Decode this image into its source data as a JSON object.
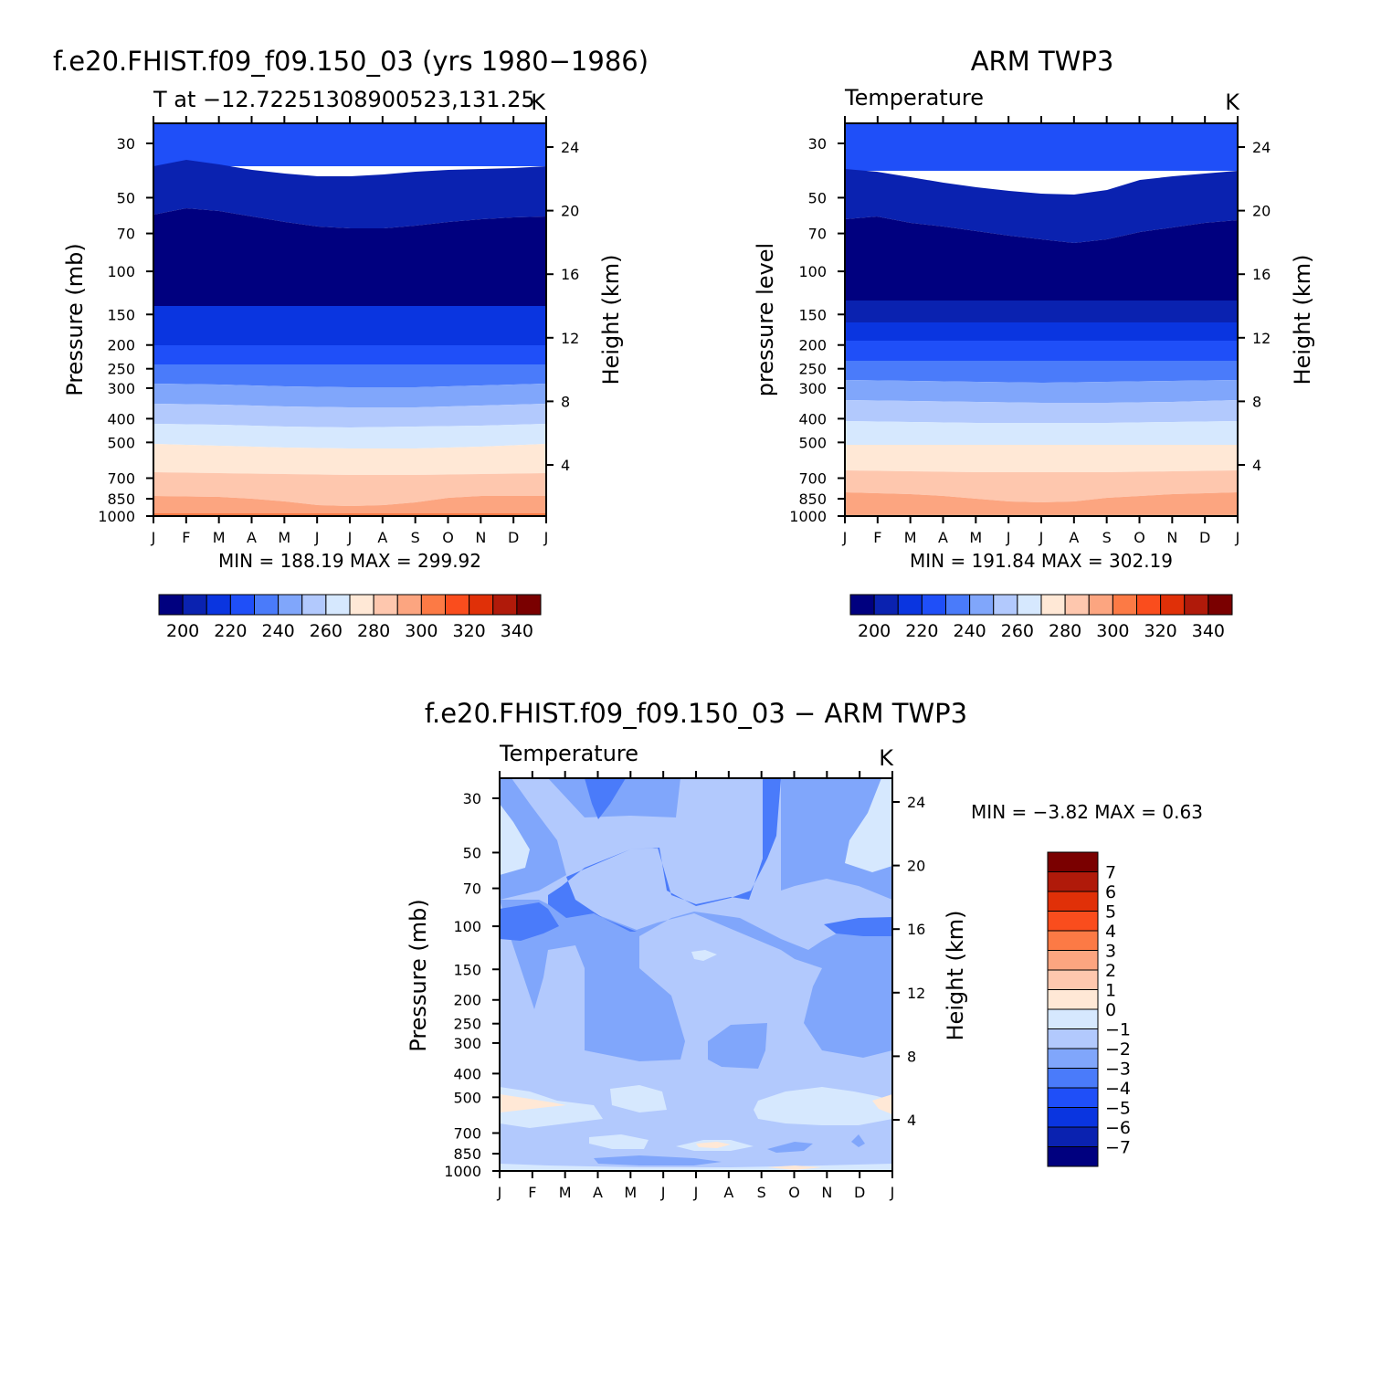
{
  "palette": [
    "#00007f",
    "#0a22b0",
    "#0a35e0",
    "#1f4ff8",
    "#4a7bfa",
    "#80a6fb",
    "#b2c9fd",
    "#d6e8fe",
    "#ffe8d6",
    "#fec7ae",
    "#fca580",
    "#fc7a45",
    "#fa4d1d",
    "#e03008",
    "#b01a0a",
    "#7a0000"
  ],
  "months": [
    "J",
    "F",
    "M",
    "A",
    "M",
    "J",
    "J",
    "A",
    "S",
    "O",
    "N",
    "D",
    "J"
  ],
  "pressure_ticks": [
    "30",
    "50",
    "70",
    "100",
    "150",
    "200",
    "250",
    "300",
    "400",
    "500",
    "700",
    "850",
    "1000"
  ],
  "height_ticks": [
    "24",
    "20",
    "16",
    "12",
    "8",
    "4"
  ],
  "panels": {
    "model": {
      "title": "f.e20.FHIST.f09_f09.150_03 (yrs 1980−1986)",
      "subtitle": "T at −12.72251308900523,131.25",
      "units": "K",
      "ylabel": "Pressure (mb)",
      "ylabel_right": "Height (km)",
      "stats": "MIN =  188.19  MAX =  299.92"
    },
    "obs": {
      "title": "ARM TWP3",
      "subtitle": "Temperature",
      "units": "K",
      "ylabel": "pressure level",
      "ylabel_right": "Height (km)",
      "stats": "MIN =  191.84  MAX =  302.19"
    },
    "diff": {
      "title": "f.e20.FHIST.f09_f09.150_03 − ARM TWP3",
      "subtitle": "Temperature",
      "units": "K",
      "ylabel": "Pressure (mb)",
      "ylabel_right": "Height (km)",
      "stats": "MIN =    −3.82  MAX =     0.63"
    }
  },
  "colorbar_top": {
    "labels": [
      "200",
      "220",
      "240",
      "260",
      "280",
      "300",
      "320",
      "340"
    ]
  },
  "colorbar_diff": {
    "labels": [
      "7",
      "6",
      "5",
      "4",
      "3",
      "2",
      "1",
      "0",
      "−1",
      "−2",
      "−3",
      "−4",
      "−5",
      "−6",
      "−7"
    ]
  },
  "chart_data": [
    {
      "type": "heatmap",
      "title": "f.e20.FHIST.f09_f09.150_03 (yrs 1980−1986)",
      "subtitle": "T at −12.72251308900523,131.25",
      "units": "K",
      "ylabel": "Pressure (mb)",
      "y2label": "Height (km)",
      "x": [
        "J",
        "F",
        "M",
        "A",
        "M",
        "J",
        "J",
        "A",
        "S",
        "O",
        "N",
        "D",
        "J"
      ],
      "y_pressure_mb": [
        30,
        50,
        70,
        100,
        150,
        200,
        250,
        300,
        400,
        500,
        700,
        850,
        1000
      ],
      "y_log": true,
      "contour_levels": [
        200,
        210,
        220,
        230,
        240,
        250,
        260,
        270,
        280,
        290,
        300,
        310,
        320,
        330,
        340
      ],
      "min": 188.19,
      "max": 299.92,
      "band_boundaries_mb": [
        {
          "level": 200,
          "p": [
            38,
            36,
            38,
            40,
            42,
            43,
            43,
            42,
            41,
            40,
            39,
            39,
            38
          ]
        },
        {
          "level": 190,
          "p": [
            65,
            62,
            63,
            64,
            66,
            68,
            70,
            70,
            69,
            67,
            65,
            64,
            64
          ]
        },
        {
          "level": 200.5,
          "p": [
            146,
            146,
            146,
            146,
            146,
            146,
            146,
            146,
            146,
            146,
            146,
            146,
            146
          ]
        },
        {
          "level": 210,
          "p": [
            178,
            178,
            179,
            180,
            180,
            180,
            180,
            180,
            180,
            180,
            180,
            179,
            178
          ]
        },
        {
          "level": 220,
          "p": [
            223,
            223,
            224,
            225,
            226,
            226,
            226,
            226,
            226,
            226,
            225,
            224,
            223
          ]
        },
        {
          "level": 230,
          "p": [
            280,
            280,
            282,
            285,
            287,
            288,
            288,
            288,
            287,
            285,
            283,
            281,
            280
          ]
        },
        {
          "level": 240,
          "p": [
            340,
            340,
            345,
            350,
            355,
            358,
            360,
            360,
            358,
            355,
            350,
            345,
            340
          ]
        },
        {
          "level": 250,
          "p": [
            425,
            425,
            430,
            435,
            440,
            445,
            448,
            448,
            445,
            440,
            435,
            430,
            425
          ]
        },
        {
          "level": 260,
          "p": [
            505,
            505,
            510,
            515,
            520,
            525,
            530,
            530,
            525,
            520,
            515,
            510,
            505
          ]
        },
        {
          "level": 270,
          "p": [
            655,
            655,
            660,
            665,
            668,
            670,
            672,
            670,
            668,
            665,
            660,
            655,
            655
          ]
        },
        {
          "level": 280,
          "p": [
            820,
            820,
            825,
            835,
            850,
            870,
            885,
            880,
            860,
            840,
            825,
            820,
            820
          ]
        },
        {
          "level": 290,
          "p": [
            990,
            990,
            990,
            990,
            990,
            990,
            990,
            990,
            990,
            990,
            990,
            990,
            990
          ]
        }
      ]
    },
    {
      "type": "heatmap",
      "title": "ARM TWP3",
      "subtitle": "Temperature",
      "units": "K",
      "ylabel": "pressure level",
      "y2label": "Height (km)",
      "x": [
        "J",
        "F",
        "M",
        "A",
        "M",
        "J",
        "J",
        "A",
        "S",
        "O",
        "N",
        "D",
        "J"
      ],
      "y_pressure_mb": [
        30,
        50,
        70,
        100,
        150,
        200,
        250,
        300,
        400,
        500,
        700,
        850,
        1000
      ],
      "y_log": true,
      "contour_levels": [
        200,
        210,
        220,
        230,
        240,
        250,
        260,
        270,
        280,
        290,
        300,
        310,
        320,
        330,
        340
      ],
      "min": 191.84,
      "max": 302.19,
      "band_boundaries_mb": [
        {
          "level": 200,
          "p": [
            40,
            39,
            40,
            42,
            44,
            46,
            48,
            49,
            48,
            44,
            42,
            41,
            40
          ]
        },
        {
          "level": 190,
          "p": [
            66,
            64,
            65,
            67,
            70,
            74,
            78,
            80,
            78,
            74,
            70,
            68,
            67
          ]
        },
        {
          "level": 200.5,
          "p": [
            136,
            136,
            137,
            138,
            139,
            140,
            140,
            140,
            140,
            139,
            138,
            137,
            136
          ]
        },
        {
          "level": 210,
          "p": [
            184,
            184,
            185,
            186,
            187,
            188,
            188,
            188,
            187,
            186,
            185,
            184,
            184
          ]
        },
        {
          "level": 220,
          "p": [
            242,
            242,
            244,
            246,
            248,
            250,
            250,
            250,
            248,
            246,
            244,
            242,
            242
          ]
        },
        {
          "level": 230,
          "p": [
            300,
            300,
            304,
            308,
            312,
            315,
            318,
            318,
            315,
            312,
            308,
            304,
            300
          ]
        },
        {
          "level": 240,
          "p": [
            380,
            380,
            385,
            390,
            395,
            398,
            400,
            400,
            398,
            395,
            390,
            385,
            380
          ]
        },
        {
          "level": 250,
          "p": [
            495,
            495,
            498,
            500,
            503,
            505,
            505,
            505,
            503,
            500,
            498,
            495,
            495
          ]
        },
        {
          "level": 260,
          "p": [
            640,
            640,
            645,
            650,
            655,
            660,
            660,
            660,
            655,
            650,
            645,
            640,
            640
          ]
        },
        {
          "level": 270,
          "p": [
            790,
            790,
            800,
            810,
            825,
            840,
            850,
            845,
            830,
            815,
            800,
            795,
            790
          ]
        },
        {
          "level": 280,
          "p": [
            990,
            990,
            990,
            990,
            990,
            990,
            990,
            990,
            990,
            990,
            990,
            990,
            990
          ]
        }
      ]
    },
    {
      "type": "heatmap",
      "title": "f.e20.FHIST.f09_f09.150_03 − ARM TWP3",
      "subtitle": "Temperature",
      "units": "K",
      "ylabel": "Pressure (mb)",
      "y2label": "Height (km)",
      "x": [
        "J",
        "F",
        "M",
        "A",
        "M",
        "J",
        "J",
        "A",
        "S",
        "O",
        "N",
        "D",
        "J"
      ],
      "y_pressure_mb": [
        30,
        50,
        70,
        100,
        150,
        200,
        250,
        300,
        400,
        500,
        700,
        850,
        1000
      ],
      "y_log": true,
      "contour_levels": [
        -7,
        -6,
        -5,
        -4,
        -3,
        -2,
        -1,
        0,
        1,
        2,
        3,
        4,
        5,
        6,
        7
      ],
      "min": -3.82,
      "max": 0.63
    }
  ]
}
